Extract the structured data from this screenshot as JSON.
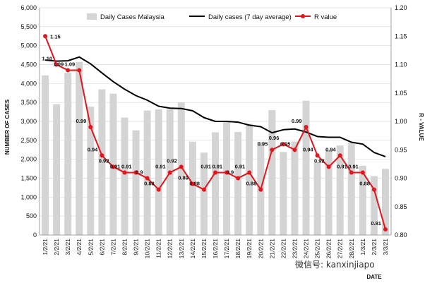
{
  "chart_data": {
    "type": "bar+line",
    "title": "",
    "xlabel": "DATE",
    "ylabel": "NUMBER OF CASES",
    "y2label": "R - VALUE",
    "ylim": [
      0,
      6000
    ],
    "y2lim": [
      0.8,
      1.2
    ],
    "yticks": [
      "0",
      "500",
      "1,000",
      "1,500",
      "2,000",
      "2,500",
      "3,000",
      "3,500",
      "4,000",
      "4,500",
      "5,000",
      "5,500",
      "6,000"
    ],
    "y2ticks": [
      "0.80",
      "0.85",
      "0.90",
      "0.95",
      "1.00",
      "1.05",
      "1.10",
      "1.15",
      "1.20"
    ],
    "categories": [
      "1/2/21",
      "2/2/21",
      "3/2/21",
      "4/2/21",
      "5/2/21",
      "6/2/21",
      "7/2/21",
      "8/2/21",
      "9/2/21",
      "10/2/21",
      "11/2/21",
      "12/2/21",
      "13/2/21",
      "14/2/21",
      "15/2/21",
      "16/2/21",
      "17/2/21",
      "18/2/21",
      "19/2/21",
      "20/2/21",
      "21/2/21",
      "22/2/21",
      "23/2/21",
      "24/2/21",
      "25/2/21",
      "26/2/21",
      "27/2/21",
      "28/2/21",
      "1/3/21",
      "2/3/21",
      "3/3/21"
    ],
    "legend": [
      "Daily Cases Malaysia",
      "Daily cases (7 day average)",
      "R value"
    ],
    "series": [
      {
        "name": "Daily Cases Malaysia",
        "type": "bar",
        "axis": "left",
        "color": "#d4d4d4",
        "values": [
          4214,
          3455,
          4284,
          4571,
          3391,
          3847,
          3731,
          3100,
          2764,
          3288,
          3318,
          3318,
          3499,
          2464,
          2176,
          2712,
          3005,
          2720,
          2936,
          2461,
          3297,
          2192,
          2468,
          3545,
          1924,
          2253,
          2364,
          2437,
          1828,
          1555,
          1745
        ]
      },
      {
        "name": "Daily cases (7 day average)",
        "type": "line",
        "axis": "left",
        "color": "#000000",
        "values": [
          4620,
          4590,
          4600,
          4700,
          4520,
          4280,
          4050,
          3850,
          3680,
          3560,
          3400,
          3350,
          3340,
          3280,
          3100,
          3000,
          3000,
          2980,
          2900,
          2860,
          2700,
          2780,
          2800,
          2720,
          2600,
          2580,
          2580,
          2450,
          2400,
          2180,
          2070
        ]
      },
      {
        "name": "R value",
        "type": "line",
        "axis": "right",
        "color": "#e3141b",
        "values": [
          1.15,
          1.1,
          1.09,
          1.09,
          0.99,
          0.94,
          0.92,
          0.91,
          0.91,
          0.9,
          0.88,
          0.91,
          0.92,
          0.89,
          0.88,
          0.91,
          0.91,
          0.9,
          0.91,
          0.88,
          0.95,
          0.96,
          0.95,
          0.99,
          0.94,
          0.92,
          0.94,
          0.91,
          0.91,
          0.88,
          0.81
        ],
        "labels": [
          "1.15",
          "1.10",
          "1.09",
          "1.09",
          "0.99",
          "0.94",
          "0.92",
          "0.91",
          "0.91",
          "0.9",
          "0.88",
          "0.91",
          "0.92",
          "0.89",
          "0.88",
          "0.91",
          "0.91",
          "0.9",
          "0.91",
          "0.88",
          "0.95",
          "0.96",
          "0.95",
          "0.99",
          "0.94",
          "0.92",
          "0.94",
          "0.91",
          "0.91",
          "0.88",
          "0.81"
        ]
      }
    ],
    "watermark": "微信号: kanxinjiapo"
  },
  "colors": {
    "bar": "#d4d4d4",
    "avg": "#000000",
    "r": "#e3141b",
    "grid": "#d9d9d9"
  }
}
